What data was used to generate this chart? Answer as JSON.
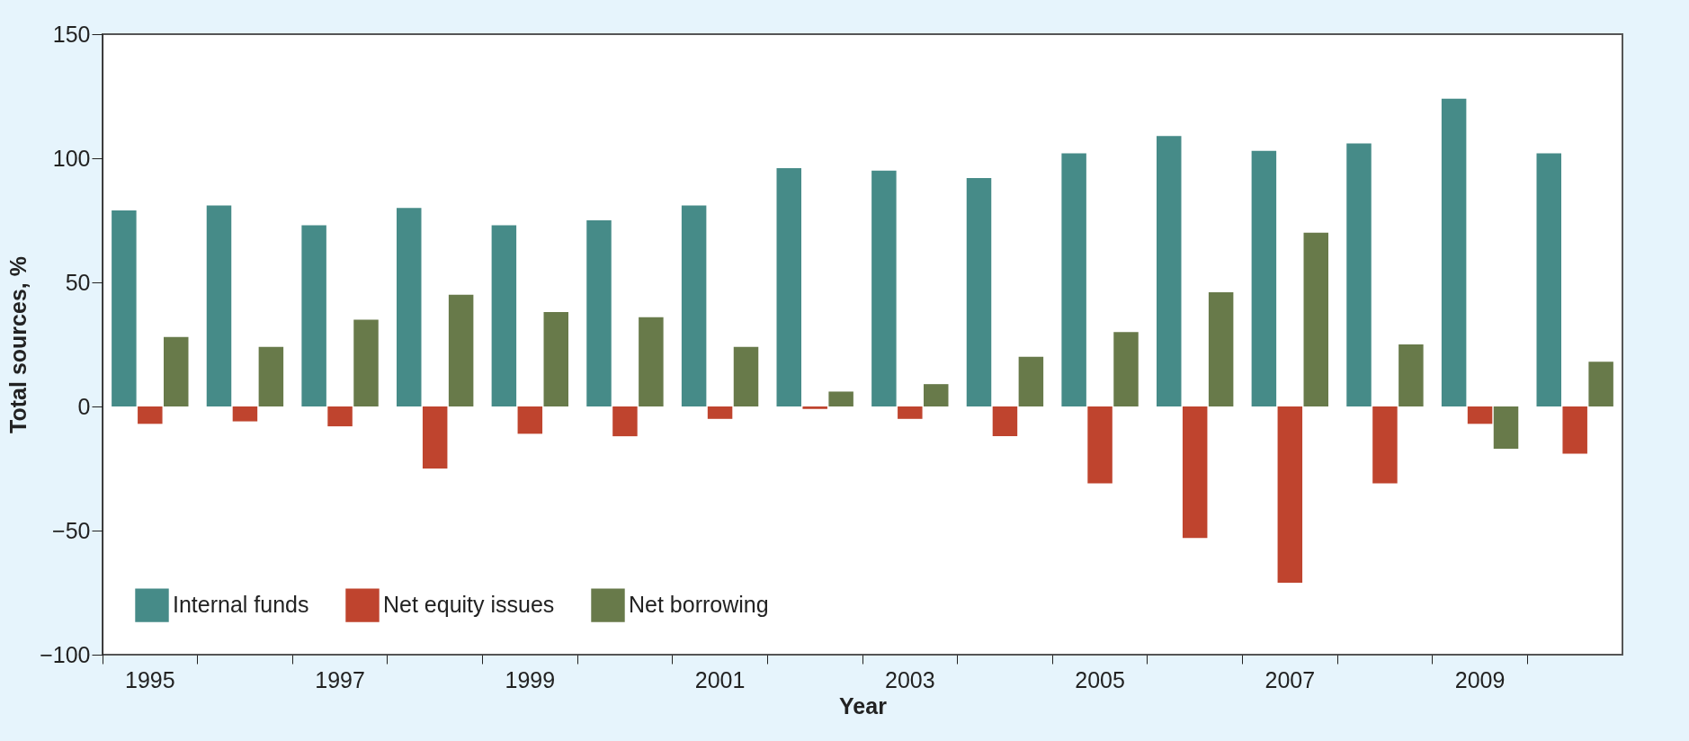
{
  "chart_data": {
    "type": "bar",
    "xlabel": "Year",
    "ylabel": "Total sources, %",
    "categories": [
      "1995",
      null,
      "1997",
      null,
      "1999",
      null,
      "2001",
      null,
      "2003",
      null,
      "2005",
      null,
      "2007",
      null,
      "2009",
      null
    ],
    "series": [
      {
        "name": "Internal funds",
        "color": "#468b88",
        "values": [
          79,
          81,
          73,
          80,
          73,
          75,
          81,
          96,
          95,
          92,
          102,
          109,
          103,
          106,
          124,
          102
        ]
      },
      {
        "name": "Net equity issues",
        "color": "#bf442e",
        "values": [
          -7,
          -6,
          -8,
          -25,
          -11,
          -12,
          -5,
          -1,
          -5,
          -12,
          -31,
          -53,
          -71,
          -31,
          -7,
          -19
        ]
      },
      {
        "name": "Net borrowing",
        "color": "#687a4a",
        "values": [
          28,
          24,
          35,
          45,
          38,
          36,
          24,
          6,
          9,
          20,
          30,
          46,
          70,
          25,
          -17,
          18
        ]
      }
    ],
    "ylim": [
      -100,
      150
    ],
    "yticks": [
      -100,
      -50,
      0,
      50,
      100,
      150
    ],
    "legend": "bottom left",
    "grid": false
  }
}
